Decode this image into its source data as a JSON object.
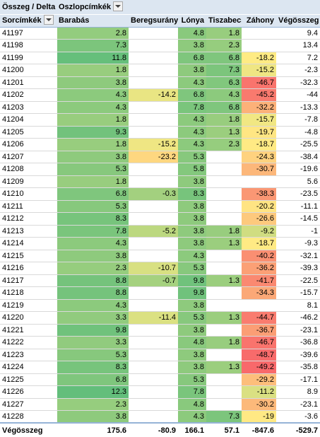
{
  "header": {
    "corner_label": "Összeg / Delta",
    "column_field_label": "Oszlopcímkék",
    "row_field_label": "Sorcímkék",
    "columns": [
      "Barabás",
      "Beregsurány",
      "Lónya",
      "Tiszabecs",
      "Záhony",
      "Végösszeg"
    ]
  },
  "rows": [
    {
      "label": "41197",
      "values": [
        "2.8",
        "",
        "4.8",
        "1.8",
        "",
        "9.4"
      ]
    },
    {
      "label": "41198",
      "values": [
        "7.3",
        "",
        "3.8",
        "2.3",
        "",
        "13.4"
      ]
    },
    {
      "label": "41199",
      "values": [
        "11.8",
        "",
        "6.8",
        "6.8",
        "-18.2",
        "7.2"
      ]
    },
    {
      "label": "41200",
      "values": [
        "1.8",
        "",
        "3.8",
        "7.3",
        "-15.2",
        "-2.3"
      ]
    },
    {
      "label": "41201",
      "values": [
        "3.8",
        "",
        "4.3",
        "6.3",
        "-46.7",
        "-32.3"
      ]
    },
    {
      "label": "41202",
      "values": [
        "4.3",
        "-14.2",
        "6.8",
        "4.3",
        "-45.2",
        "-44"
      ]
    },
    {
      "label": "41203",
      "values": [
        "4.3",
        "",
        "7.8",
        "6.8",
        "-32.2",
        "-13.3"
      ]
    },
    {
      "label": "41204",
      "values": [
        "1.8",
        "",
        "4.3",
        "1.8",
        "-15.7",
        "-7.8"
      ]
    },
    {
      "label": "41205",
      "values": [
        "9.3",
        "",
        "4.3",
        "1.3",
        "-19.7",
        "-4.8"
      ]
    },
    {
      "label": "41206",
      "values": [
        "1.8",
        "-15.2",
        "4.3",
        "2.3",
        "-18.7",
        "-25.5"
      ]
    },
    {
      "label": "41207",
      "values": [
        "3.8",
        "-23.2",
        "5.3",
        "",
        "-24.3",
        "-38.4"
      ]
    },
    {
      "label": "41208",
      "values": [
        "5.3",
        "",
        "5.8",
        "",
        "-30.7",
        "-19.6"
      ]
    },
    {
      "label": "41209",
      "values": [
        "1.8",
        "",
        "3.8",
        "",
        "",
        "5.6"
      ]
    },
    {
      "label": "41210",
      "values": [
        "6.8",
        "-0.3",
        "8.3",
        "",
        "-38.3",
        "-23.5"
      ]
    },
    {
      "label": "41211",
      "values": [
        "5.3",
        "",
        "3.8",
        "",
        "-20.2",
        "-11.1"
      ]
    },
    {
      "label": "41212",
      "values": [
        "8.3",
        "",
        "3.8",
        "",
        "-26.6",
        "-14.5"
      ]
    },
    {
      "label": "41213",
      "values": [
        "7.8",
        "-5.2",
        "3.8",
        "1.8",
        "-9.2",
        "-1"
      ]
    },
    {
      "label": "41214",
      "values": [
        "4.3",
        "",
        "3.8",
        "1.3",
        "-18.7",
        "-9.3"
      ]
    },
    {
      "label": "41215",
      "values": [
        "3.8",
        "",
        "4.3",
        "",
        "-40.2",
        "-32.1"
      ]
    },
    {
      "label": "41216",
      "values": [
        "2.3",
        "-10.7",
        "5.3",
        "",
        "-36.2",
        "-39.3"
      ]
    },
    {
      "label": "41217",
      "values": [
        "8.8",
        "-0.7",
        "9.8",
        "1.3",
        "-41.7",
        "-22.5"
      ]
    },
    {
      "label": "41218",
      "values": [
        "8.8",
        "",
        "9.8",
        "",
        "-34.3",
        "-15.7"
      ]
    },
    {
      "label": "41219",
      "values": [
        "4.3",
        "",
        "3.8",
        "",
        "",
        "8.1"
      ]
    },
    {
      "label": "41220",
      "values": [
        "3.3",
        "-11.4",
        "5.3",
        "1.3",
        "-44.7",
        "-46.2"
      ]
    },
    {
      "label": "41221",
      "values": [
        "9.8",
        "",
        "3.8",
        "",
        "-36.7",
        "-23.1"
      ]
    },
    {
      "label": "41222",
      "values": [
        "3.3",
        "",
        "4.8",
        "1.8",
        "-46.7",
        "-36.8"
      ]
    },
    {
      "label": "41223",
      "values": [
        "5.3",
        "",
        "3.8",
        "",
        "-48.7",
        "-39.6"
      ]
    },
    {
      "label": "41224",
      "values": [
        "8.3",
        "",
        "3.8",
        "1.3",
        "-49.2",
        "-35.8"
      ]
    },
    {
      "label": "41225",
      "values": [
        "6.8",
        "",
        "5.3",
        "",
        "-29.2",
        "-17.1"
      ]
    },
    {
      "label": "41226",
      "values": [
        "12.3",
        "",
        "7.8",
        "",
        "-11.2",
        "8.9"
      ]
    },
    {
      "label": "41227",
      "values": [
        "2.3",
        "",
        "4.8",
        "",
        "-30.2",
        "-23.1"
      ]
    },
    {
      "label": "41228",
      "values": [
        "3.8",
        "",
        "4.3",
        "7.3",
        "-19",
        "-3.6"
      ]
    }
  ],
  "total": {
    "label": "Végösszeg",
    "values": [
      "175.6",
      "-80.9",
      "166.1",
      "57.1",
      "-847.6",
      "-529.7"
    ]
  },
  "colors": {
    "scale_low": "#f8696b",
    "scale_mid": "#ffeb84",
    "scale_high": "#63be7b",
    "header_fill": "#dce6f1",
    "header_border": "#95b3d7"
  },
  "icons": {
    "filter_dropdown": "chevron-down-icon"
  }
}
